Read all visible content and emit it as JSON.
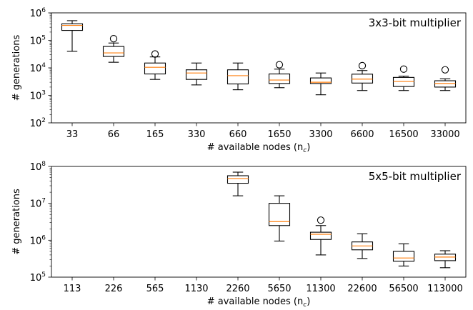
{
  "chart_data": [
    {
      "type": "box",
      "title": "3x3-bit multiplier",
      "xlabel": "# available nodes (n",
      "xlabel_sub": "c",
      "xlabel_close": ")",
      "ylabel": "# generations",
      "yscale": "log",
      "ylim": [
        100,
        1000000
      ],
      "yticks": [
        {
          "value": 100,
          "base": "10",
          "exp": "2"
        },
        {
          "value": 1000,
          "base": "10",
          "exp": "3"
        },
        {
          "value": 10000,
          "base": "10",
          "exp": "4"
        },
        {
          "value": 100000,
          "base": "10",
          "exp": "5"
        },
        {
          "value": 1000000,
          "base": "10",
          "exp": "6"
        }
      ],
      "categories": [
        "33",
        "66",
        "165",
        "330",
        "660",
        "1650",
        "3300",
        "6600",
        "16500",
        "33000"
      ],
      "boxes": [
        {
          "whislo": 40000,
          "q1": 230000,
          "med": 350000,
          "q3": 400000,
          "whishi": 520000,
          "fliers": []
        },
        {
          "whislo": 16000,
          "q1": 26000,
          "med": 35000,
          "q3": 60000,
          "whishi": 80000,
          "fliers": [
            115000
          ]
        },
        {
          "whislo": 3800,
          "q1": 6000,
          "med": 10500,
          "q3": 15000,
          "whishi": 25000,
          "fliers": [
            32000
          ]
        },
        {
          "whislo": 2400,
          "q1": 3800,
          "med": 6500,
          "q3": 8500,
          "whishi": 15000,
          "fliers": []
        },
        {
          "whislo": 1600,
          "q1": 2600,
          "med": 5200,
          "q3": 8500,
          "whishi": 15000,
          "fliers": []
        },
        {
          "whislo": 1900,
          "q1": 2700,
          "med": 3600,
          "q3": 6000,
          "whishi": 9000,
          "fliers": [
            13000
          ]
        },
        {
          "whislo": 1050,
          "q1": 2700,
          "med": 3000,
          "q3": 4300,
          "whishi": 6500,
          "fliers": []
        },
        {
          "whislo": 1500,
          "q1": 2800,
          "med": 3900,
          "q3": 5900,
          "whishi": 8000,
          "fliers": [
            12000
          ]
        },
        {
          "whislo": 1500,
          "q1": 2100,
          "med": 3200,
          "q3": 4500,
          "whishi": 5000,
          "fliers": [
            9000
          ]
        },
        {
          "whislo": 1500,
          "q1": 2000,
          "med": 2700,
          "q3": 3400,
          "whishi": 4000,
          "fliers": [
            8500
          ]
        }
      ]
    },
    {
      "type": "box",
      "title": "5x5-bit multiplier",
      "xlabel": "# available nodes (n",
      "xlabel_sub": "c",
      "xlabel_close": ")",
      "ylabel": "# generations",
      "yscale": "log",
      "ylim": [
        100000,
        100000000
      ],
      "yticks": [
        {
          "value": 100000,
          "base": "10",
          "exp": "5"
        },
        {
          "value": 1000000,
          "base": "10",
          "exp": "6"
        },
        {
          "value": 10000000,
          "base": "10",
          "exp": "7"
        },
        {
          "value": 100000000,
          "base": "10",
          "exp": "8"
        }
      ],
      "categories": [
        "113",
        "226",
        "565",
        "1130",
        "2260",
        "5650",
        "11300",
        "22600",
        "56500",
        "113000"
      ],
      "boxes": [
        null,
        null,
        null,
        null,
        {
          "whislo": 16000000,
          "q1": 35000000,
          "med": 47000000,
          "q3": 56000000,
          "whishi": 70000000,
          "fliers": []
        },
        {
          "whislo": 950000,
          "q1": 2500000,
          "med": 3200000,
          "q3": 10000000,
          "whishi": 16000000,
          "fliers": []
        },
        {
          "whislo": 400000,
          "q1": 1050000,
          "med": 1450000,
          "q3": 1650000,
          "whishi": 2500000,
          "fliers": [
            3500000
          ]
        },
        {
          "whislo": 320000,
          "q1": 550000,
          "med": 700000,
          "q3": 900000,
          "whishi": 1500000,
          "fliers": []
        },
        {
          "whislo": 200000,
          "q1": 270000,
          "med": 330000,
          "q3": 500000,
          "whishi": 800000,
          "fliers": []
        },
        {
          "whislo": 180000,
          "q1": 280000,
          "med": 350000,
          "q3": 420000,
          "whishi": 520000,
          "fliers": []
        }
      ]
    }
  ],
  "colors": {
    "box": "#000000",
    "median": "#ff7f0e",
    "flier": "#000000",
    "axes": "#000000",
    "background": "#ffffff"
  }
}
